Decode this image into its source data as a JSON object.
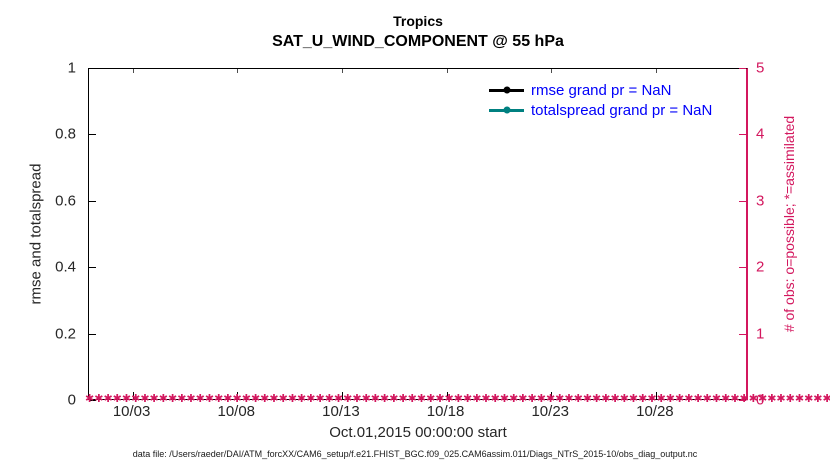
{
  "title": {
    "line1": "Tropics",
    "line2": "SAT_U_WIND_COMPONENT @ 55 hPa"
  },
  "legend": {
    "text_color": "#0000FA",
    "items": [
      {
        "label": "rmse grand pr = NaN",
        "line_color": "#000000",
        "marker": "filled-circle"
      },
      {
        "label": "totalspread grand pr = NaN",
        "line_color": "#008080",
        "marker": "filled-circle"
      }
    ]
  },
  "axes": {
    "left": {
      "label": "rmse and totalspread",
      "ticks": [
        "0",
        "0.2",
        "0.4",
        "0.6",
        "0.8",
        "1"
      ],
      "color": "#262626"
    },
    "right": {
      "label": "# of obs: o=possible; *=assimilated",
      "ticks": [
        "0",
        "1",
        "2",
        "3",
        "4",
        "5"
      ],
      "color": "#D3175E"
    },
    "x": {
      "ticks": [
        "10/03",
        "10/08",
        "10/13",
        "10/18",
        "10/23",
        "10/28"
      ],
      "label": "Oct.01,2015 00:00:00 start"
    }
  },
  "footer": {
    "text": "data file: /Users/raeder/DAI/ATM_forcXX/CAM6_setup/f.e21.FHIST_BGC.f09_025.CAM6assim.011/Diags_NTrS_2015-10/obs_diag_output.nc"
  },
  "chart_data": {
    "type": "line",
    "title": "Tropics",
    "subtitle": "SAT_U_WIND_COMPONENT @ 55 hPa",
    "xlabel": "Oct.01,2015 00:00:00 start",
    "ylabel_left": "rmse and totalspread",
    "ylabel_right": "# of obs: o=possible; *=assimilated",
    "x_ticks": [
      "10/03",
      "10/08",
      "10/13",
      "10/18",
      "10/23",
      "10/28"
    ],
    "xlim": [
      "2015-10-01 00:00",
      "2015-11-01 12:00"
    ],
    "ylim_left": [
      0,
      1
    ],
    "ylim_right": [
      0,
      5
    ],
    "grid": false,
    "legend_position": "top-right inside plot, no box",
    "series": [
      {
        "name": "rmse",
        "axis": "left",
        "color": "#000000",
        "marker": "filled-circle",
        "grand_pr": "NaN",
        "values": [],
        "note": "no visible curve; value is NaN"
      },
      {
        "name": "totalspread",
        "axis": "left",
        "color": "#008080",
        "marker": "filled-circle",
        "grand_pr": "NaN",
        "values": [],
        "note": "no visible curve; value is NaN"
      },
      {
        "name": "obs_possible (o)",
        "axis": "right",
        "color": "#D3175E",
        "marker": "o",
        "constant_value": 0,
        "n_points": 130,
        "note": "all zeros along y=0, hidden under asterisks"
      },
      {
        "name": "obs_assimilated (*)",
        "axis": "right",
        "color": "#D3175E",
        "marker": "*",
        "constant_value": 0,
        "n_points": 130,
        "note": "dense * markers forming a solid band at y=0 across full time range"
      }
    ]
  }
}
